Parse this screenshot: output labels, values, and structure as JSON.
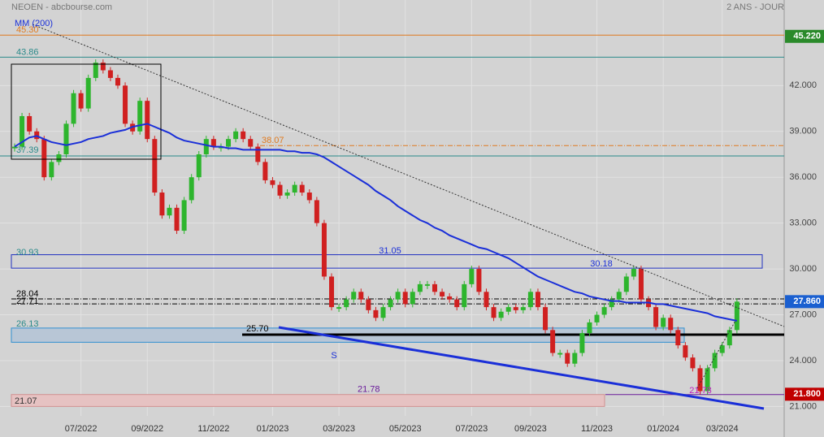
{
  "chart_data": {
    "type": "stock",
    "title": "NEOEN - abcbourse.com",
    "subtitle": "2 ANS - JOUR",
    "categories": [
      null,
      null,
      null,
      null,
      null,
      null,
      null,
      null,
      null,
      "07/2022",
      null,
      null,
      null,
      null,
      null,
      null,
      null,
      null,
      "09/2022",
      null,
      null,
      null,
      null,
      null,
      null,
      null,
      null,
      "11/2022",
      null,
      null,
      null,
      null,
      null,
      null,
      null,
      "01/2023",
      null,
      null,
      null,
      null,
      null,
      null,
      null,
      null,
      "03/2023",
      null,
      null,
      null,
      null,
      null,
      null,
      null,
      null,
      "05/2023",
      null,
      null,
      null,
      null,
      null,
      null,
      null,
      null,
      "07/2023",
      null,
      null,
      null,
      null,
      null,
      null,
      null,
      "09/2023",
      null,
      null,
      null,
      null,
      null,
      null,
      null,
      null,
      "11/2023",
      null,
      null,
      null,
      null,
      null,
      null,
      null,
      null,
      "01/2024",
      null,
      null,
      null,
      null,
      null,
      null,
      null,
      "03/2024",
      null,
      null
    ],
    "series": [
      {
        "color_up": "#2db52d",
        "color_down": "#d02020",
        "values": [
          38,
          40,
          39,
          38.5,
          36,
          37,
          37.5,
          39.5,
          41.5,
          40.5,
          42.5,
          43.5,
          43,
          42.5,
          42,
          39.5,
          39,
          41,
          38.5,
          35,
          33.5,
          34,
          32.5,
          34.5,
          36,
          37.5,
          38.5,
          38,
          38,
          38.5,
          39,
          38.5,
          38,
          37,
          35.8,
          35.5,
          34.8,
          35,
          35.5,
          35,
          34.5,
          33,
          29.5,
          27.5,
          27.5,
          28,
          28.5,
          28,
          27.3,
          26.8,
          27.5,
          28,
          28.5,
          27.7,
          28.5,
          29,
          29,
          28.5,
          28.2,
          28,
          27.5,
          29,
          30,
          28.5,
          27.5,
          26.8,
          27.2,
          27.5,
          27.3,
          27.5,
          28.5,
          27.5,
          26,
          24.5,
          24.5,
          23.8,
          24.5,
          25.8,
          26.5,
          27,
          27.5,
          28,
          28.5,
          29.5,
          30,
          28,
          27.5,
          26.2,
          26.8,
          26,
          25,
          24.2,
          23.5,
          22,
          23.5,
          24.5,
          25,
          26,
          27.86
        ]
      },
      {
        "name": "MM (200)",
        "color": "#1a2fd8",
        "values": [
          38,
          38.3,
          38.6,
          38.7,
          38.5,
          38.3,
          38.2,
          38.1,
          38.2,
          38.3,
          38.5,
          38.6,
          38.7,
          38.9,
          39,
          39.1,
          39.3,
          39.4,
          39.5,
          39.3,
          39.1,
          38.9,
          38.6,
          38.4,
          38.3,
          38.2,
          38.1,
          38,
          38,
          37.9,
          37.9,
          37.8,
          37.8,
          37.8,
          37.8,
          37.8,
          37.8,
          37.7,
          37.7,
          37.6,
          37.6,
          37.5,
          37.3,
          37,
          36.7,
          36.4,
          36.1,
          35.8,
          35.5,
          35.1,
          34.8,
          34.5,
          34.1,
          33.8,
          33.5,
          33.2,
          33,
          32.7,
          32.5,
          32.2,
          32,
          31.8,
          31.6,
          31.4,
          31.3,
          31.1,
          30.9,
          30.7,
          30.4,
          30.1,
          29.8,
          29.5,
          29.3,
          29.1,
          28.9,
          28.7,
          28.5,
          28.4,
          28.2,
          28.1,
          28,
          27.9,
          27.9,
          27.8,
          27.8,
          27.8,
          27.8,
          27.7,
          27.7,
          27.6,
          27.5,
          27.4,
          27.3,
          27.2,
          27.1,
          26.9,
          26.8,
          26.7,
          26.6
        ]
      }
    ],
    "ylim": [
      19,
      47.6
    ],
    "yticks": [
      {
        "value": 21,
        "label": "21.000"
      },
      {
        "value": 24,
        "label": "24.000"
      },
      {
        "value": 27,
        "label": "27.000"
      },
      {
        "value": 30,
        "label": "30.000"
      },
      {
        "value": 33,
        "label": "33.000"
      },
      {
        "value": 36,
        "label": "36.000"
      },
      {
        "value": 39,
        "label": "39.000"
      },
      {
        "value": 42,
        "label": "42.000"
      }
    ],
    "grid": true,
    "levels": [
      {
        "value": 45.3,
        "label": "45.30",
        "color": "#e07b20",
        "style": "solid"
      },
      {
        "value": 43.86,
        "label": "43.86",
        "color": "#2a8a8a",
        "style": "solid"
      },
      {
        "value": 37.39,
        "label": "37.39",
        "color": "#2a8a8a",
        "style": "solid"
      },
      {
        "value": 38.07,
        "label": "38.07",
        "color": "#e07b20",
        "style": "dashdot"
      },
      {
        "value": 28.04,
        "label": "28.04",
        "color": "#000000",
        "style": "dashdot"
      },
      {
        "value": 27.71,
        "label": "27.71",
        "color": "#000000",
        "style": "dashdot"
      },
      {
        "value": 25.7,
        "label": "25.70",
        "color": "#000000",
        "style": "thick"
      },
      {
        "value": 21.78,
        "label": "21.78",
        "color": "#6a1b9a",
        "style": "solid"
      }
    ],
    "zones": [
      {
        "label": "30.93",
        "top": 30.93,
        "bottom": 30.05,
        "fill": "none",
        "stroke": "#2030c0"
      },
      {
        "label": "26.13",
        "top": 26.13,
        "bottom": 25.2,
        "fill": "#b8c6d6",
        "stroke": "#3090d0"
      },
      {
        "label": "21.07",
        "top": 21.78,
        "bottom": 21.0,
        "fill": "#e6c2c2",
        "stroke": "#d09090"
      }
    ],
    "notes": [
      {
        "label": "31.05"
      },
      {
        "label": "30.18"
      },
      {
        "label": "S"
      },
      {
        "label": "21.78"
      }
    ],
    "price_labels": [
      {
        "value": 45.22,
        "label": "45.220",
        "color": "#2a8a2a"
      },
      {
        "value": 27.86,
        "label": "27.860",
        "color": "#1a5fd0"
      },
      {
        "value": 21.8,
        "label": "21.800",
        "color": "#c00000"
      }
    ]
  }
}
